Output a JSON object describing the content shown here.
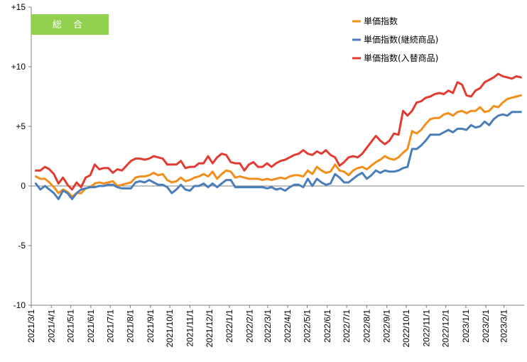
{
  "badge": {
    "label": "総 合",
    "color": "#92d050"
  },
  "chart_data": {
    "type": "line",
    "title": "",
    "xlabel": "",
    "ylabel": "",
    "ylim": [
      -10,
      15
    ],
    "y_ticks": [
      15,
      10,
      5,
      0,
      -5,
      -10
    ],
    "y_tick_labels": [
      "+15",
      "+10",
      "+5",
      "0",
      "-5",
      "-10"
    ],
    "x_tick_labels": [
      "2021/3/1",
      "2021/4/1",
      "2021/5/1",
      "2021/6/1",
      "2021/7/1",
      "2021/8/1",
      "2021/9/1",
      "2021/10/1",
      "2021/11/1",
      "2021/12/1",
      "2022/1/1",
      "2022/2/1",
      "2022/3/1",
      "2022/4/1",
      "2022/5/1",
      "2022/6/1",
      "2022/7/1",
      "2022/8/1",
      "2022/9/1",
      "2022/10/1",
      "2022/11/1",
      "2022/12/1",
      "2023/1/1",
      "2023/2/1",
      "2023/3/1"
    ],
    "legend_position": "top-right",
    "grid": false,
    "series": [
      {
        "name": "単価指数",
        "color": "#f28e1c",
        "x": [
          "2021/3/8",
          "2021/3/15",
          "2021/3/22",
          "2021/3/29",
          "2021/4/5",
          "2021/4/12",
          "2021/4/19",
          "2021/4/26",
          "2021/5/3",
          "2021/5/10",
          "2021/5/17",
          "2021/5/24",
          "2021/5/31",
          "2021/6/7",
          "2021/6/14",
          "2021/6/21",
          "2021/6/28",
          "2021/7/5",
          "2021/7/12",
          "2021/7/19",
          "2021/7/26",
          "2021/8/2",
          "2021/8/9",
          "2021/8/16",
          "2021/8/23",
          "2021/8/30",
          "2021/9/6",
          "2021/9/13",
          "2021/9/20",
          "2021/9/27",
          "2021/10/4",
          "2021/10/11",
          "2021/10/18",
          "2021/10/25",
          "2021/11/1",
          "2021/11/8",
          "2021/11/15",
          "2021/11/22",
          "2021/11/29",
          "2021/12/6",
          "2021/12/13",
          "2021/12/20",
          "2021/12/27",
          "2022/1/3",
          "2022/1/10",
          "2022/1/17",
          "2022/1/24",
          "2022/1/31",
          "2022/2/7",
          "2022/2/14",
          "2022/2/21",
          "2022/2/28",
          "2022/3/7",
          "2022/3/14",
          "2022/3/21",
          "2022/3/28",
          "2022/4/4",
          "2022/4/11",
          "2022/4/18",
          "2022/4/25",
          "2022/5/2",
          "2022/5/9",
          "2022/5/16",
          "2022/5/23",
          "2022/5/30",
          "2022/6/6",
          "2022/6/13",
          "2022/6/20",
          "2022/6/27",
          "2022/7/4",
          "2022/7/11",
          "2022/7/18",
          "2022/7/25",
          "2022/8/1",
          "2022/8/8",
          "2022/8/15",
          "2022/8/22",
          "2022/8/29",
          "2022/9/5",
          "2022/9/12",
          "2022/9/19",
          "2022/9/26",
          "2022/10/3",
          "2022/10/10",
          "2022/10/17",
          "2022/10/24",
          "2022/10/31",
          "2022/11/7",
          "2022/11/14",
          "2022/11/21",
          "2022/11/28",
          "2022/12/5",
          "2022/12/12",
          "2022/12/19",
          "2022/12/26",
          "2023/1/2",
          "2023/1/9",
          "2023/1/16",
          "2023/1/23",
          "2023/1/30",
          "2023/2/6",
          "2023/2/13",
          "2023/2/20",
          "2023/2/27",
          "2023/3/6",
          "2023/3/13",
          "2023/3/20",
          "2023/3/27"
        ],
        "values": [
          0.8,
          0.6,
          0.6,
          0.3,
          -0.1,
          -0.6,
          -0.3,
          -0.5,
          -0.9,
          -0.6,
          -0.6,
          -0.2,
          -0.1,
          0.2,
          0.3,
          0.2,
          0.3,
          0.4,
          0.0,
          0.1,
          0.2,
          0.3,
          0.7,
          0.8,
          0.8,
          0.9,
          1.1,
          0.9,
          1.0,
          0.5,
          0.3,
          0.4,
          0.7,
          0.4,
          0.5,
          0.7,
          0.8,
          1.0,
          0.8,
          1.2,
          0.6,
          1.0,
          1.3,
          1.2,
          0.7,
          0.8,
          0.7,
          0.6,
          0.6,
          0.6,
          0.5,
          0.6,
          0.5,
          0.6,
          0.7,
          0.6,
          0.8,
          0.9,
          0.9,
          0.8,
          1.3,
          1.0,
          1.6,
          1.3,
          1.1,
          1.2,
          1.8,
          1.3,
          1.2,
          0.9,
          1.3,
          1.5,
          1.6,
          1.4,
          1.7,
          2.0,
          2.2,
          2.5,
          2.3,
          2.2,
          2.4,
          2.8,
          3.1,
          4.6,
          4.4,
          4.7,
          5.2,
          5.6,
          5.7,
          5.7,
          6.0,
          6.1,
          5.9,
          6.2,
          6.3,
          6.1,
          6.3,
          6.3,
          6.6,
          6.2,
          6.3,
          6.7,
          6.6,
          7.0,
          7.3,
          7.4,
          7.5,
          7.6
        ]
      },
      {
        "name": "単価指数(継続商品)",
        "color": "#4a7ebb",
        "x": [
          "2021/3/8",
          "2021/3/15",
          "2021/3/22",
          "2021/3/29",
          "2021/4/5",
          "2021/4/12",
          "2021/4/19",
          "2021/4/26",
          "2021/5/3",
          "2021/5/10",
          "2021/5/17",
          "2021/5/24",
          "2021/5/31",
          "2021/6/7",
          "2021/6/14",
          "2021/6/21",
          "2021/6/28",
          "2021/7/5",
          "2021/7/12",
          "2021/7/19",
          "2021/7/26",
          "2021/8/2",
          "2021/8/9",
          "2021/8/16",
          "2021/8/23",
          "2021/8/30",
          "2021/9/6",
          "2021/9/13",
          "2021/9/20",
          "2021/9/27",
          "2021/10/4",
          "2021/10/11",
          "2021/10/18",
          "2021/10/25",
          "2021/11/1",
          "2021/11/8",
          "2021/11/15",
          "2021/11/22",
          "2021/11/29",
          "2021/12/6",
          "2021/12/13",
          "2021/12/20",
          "2021/12/27",
          "2022/1/3",
          "2022/1/10",
          "2022/1/17",
          "2022/1/24",
          "2022/1/31",
          "2022/2/7",
          "2022/2/14",
          "2022/2/21",
          "2022/2/28",
          "2022/3/7",
          "2022/3/14",
          "2022/3/21",
          "2022/3/28",
          "2022/4/4",
          "2022/4/11",
          "2022/4/18",
          "2022/4/25",
          "2022/5/2",
          "2022/5/9",
          "2022/5/16",
          "2022/5/23",
          "2022/5/30",
          "2022/6/6",
          "2022/6/13",
          "2022/6/20",
          "2022/6/27",
          "2022/7/4",
          "2022/7/11",
          "2022/7/18",
          "2022/7/25",
          "2022/8/1",
          "2022/8/8",
          "2022/8/15",
          "2022/8/22",
          "2022/8/29",
          "2022/9/5",
          "2022/9/12",
          "2022/9/19",
          "2022/9/26",
          "2022/10/3",
          "2022/10/10",
          "2022/10/17",
          "2022/10/24",
          "2022/10/31",
          "2022/11/7",
          "2022/11/14",
          "2022/11/21",
          "2022/11/28",
          "2022/12/5",
          "2022/12/12",
          "2022/12/19",
          "2022/12/26",
          "2023/1/2",
          "2023/1/9",
          "2023/1/16",
          "2023/1/23",
          "2023/1/30",
          "2023/2/6",
          "2023/2/13",
          "2023/2/20",
          "2023/2/27",
          "2023/3/6",
          "2023/3/13",
          "2023/3/20",
          "2023/3/27"
        ],
        "values": [
          0.2,
          -0.3,
          0.0,
          -0.3,
          -0.6,
          -1.1,
          -0.4,
          -0.6,
          -1.1,
          -0.6,
          -0.3,
          -0.2,
          -0.1,
          -0.1,
          0.0,
          0.0,
          0.1,
          0.1,
          -0.1,
          -0.2,
          -0.2,
          -0.2,
          0.3,
          0.4,
          0.3,
          0.5,
          0.3,
          0.1,
          0.1,
          -0.1,
          -0.6,
          -0.3,
          0.1,
          -0.3,
          -0.4,
          0.0,
          0.0,
          0.2,
          -0.1,
          0.2,
          -0.1,
          0.2,
          0.5,
          0.5,
          -0.1,
          -0.1,
          -0.1,
          -0.1,
          -0.1,
          -0.1,
          -0.1,
          -0.2,
          -0.1,
          -0.3,
          -0.2,
          -0.4,
          -0.1,
          0.1,
          0.1,
          -0.1,
          0.6,
          0.0,
          0.6,
          0.3,
          0.1,
          0.2,
          1.0,
          0.7,
          0.3,
          0.3,
          0.6,
          0.9,
          1.1,
          0.6,
          0.9,
          1.3,
          1.1,
          1.3,
          1.2,
          1.2,
          1.3,
          1.5,
          1.6,
          3.1,
          3.1,
          3.4,
          3.8,
          4.3,
          4.3,
          4.3,
          4.5,
          4.7,
          4.5,
          4.8,
          4.8,
          4.7,
          5.1,
          4.9,
          5.0,
          5.4,
          5.1,
          5.6,
          5.9,
          6.0,
          5.9,
          6.2,
          6.2,
          6.2
        ]
      },
      {
        "name": "単価指数(入替商品)",
        "color": "#e03c31",
        "x": [
          "2021/3/8",
          "2021/3/15",
          "2021/3/22",
          "2021/3/29",
          "2021/4/5",
          "2021/4/12",
          "2021/4/19",
          "2021/4/26",
          "2021/5/3",
          "2021/5/10",
          "2021/5/17",
          "2021/5/24",
          "2021/5/31",
          "2021/6/7",
          "2021/6/14",
          "2021/6/21",
          "2021/6/28",
          "2021/7/5",
          "2021/7/12",
          "2021/7/19",
          "2021/7/26",
          "2021/8/2",
          "2021/8/9",
          "2021/8/16",
          "2021/8/23",
          "2021/8/30",
          "2021/9/6",
          "2021/9/13",
          "2021/9/20",
          "2021/9/27",
          "2021/10/4",
          "2021/10/11",
          "2021/10/18",
          "2021/10/25",
          "2021/11/1",
          "2021/11/8",
          "2021/11/15",
          "2021/11/22",
          "2021/11/29",
          "2021/12/6",
          "2021/12/13",
          "2021/12/20",
          "2021/12/27",
          "2022/1/3",
          "2022/1/10",
          "2022/1/17",
          "2022/1/24",
          "2022/1/31",
          "2022/2/7",
          "2022/2/14",
          "2022/2/21",
          "2022/2/28",
          "2022/3/7",
          "2022/3/14",
          "2022/3/21",
          "2022/3/28",
          "2022/4/4",
          "2022/4/11",
          "2022/4/18",
          "2022/4/25",
          "2022/5/2",
          "2022/5/9",
          "2022/5/16",
          "2022/5/23",
          "2022/5/30",
          "2022/6/6",
          "2022/6/13",
          "2022/6/20",
          "2022/6/27",
          "2022/7/4",
          "2022/7/11",
          "2022/7/18",
          "2022/7/25",
          "2022/8/1",
          "2022/8/8",
          "2022/8/15",
          "2022/8/22",
          "2022/8/29",
          "2022/9/5",
          "2022/9/12",
          "2022/9/19",
          "2022/9/26",
          "2022/10/3",
          "2022/10/10",
          "2022/10/17",
          "2022/10/24",
          "2022/10/31",
          "2022/11/7",
          "2022/11/14",
          "2022/11/21",
          "2022/11/28",
          "2022/12/5",
          "2022/12/12",
          "2022/12/19",
          "2022/12/26",
          "2023/1/2",
          "2023/1/9",
          "2023/1/16",
          "2023/1/23",
          "2023/1/30",
          "2023/2/6",
          "2023/2/13",
          "2023/2/20",
          "2023/2/27",
          "2023/3/6",
          "2023/3/13",
          "2023/3/20",
          "2023/3/27"
        ],
        "values": [
          1.3,
          1.3,
          1.6,
          1.4,
          1.0,
          0.2,
          0.7,
          0.1,
          -0.3,
          0.3,
          -0.1,
          0.7,
          0.9,
          1.8,
          1.4,
          1.5,
          1.5,
          1.1,
          1.4,
          1.3,
          1.7,
          2.1,
          2.3,
          2.3,
          2.2,
          2.3,
          2.5,
          2.4,
          2.3,
          1.8,
          1.8,
          1.8,
          2.1,
          1.5,
          1.6,
          1.6,
          1.9,
          1.9,
          2.5,
          1.9,
          2.4,
          2.7,
          2.6,
          2.0,
          1.9,
          1.9,
          1.3,
          1.8,
          2.0,
          1.6,
          1.6,
          1.9,
          1.6,
          1.9,
          2.1,
          2.2,
          2.4,
          2.6,
          2.7,
          3.0,
          2.7,
          2.6,
          2.9,
          2.7,
          3.0,
          2.6,
          2.4,
          1.7,
          2.0,
          2.4,
          2.5,
          2.4,
          2.7,
          3.2,
          3.7,
          4.2,
          3.8,
          3.5,
          3.8,
          4.4,
          4.3,
          6.3,
          5.9,
          6.3,
          7.0,
          7.1,
          7.4,
          7.5,
          7.7,
          7.8,
          7.7,
          8.0,
          7.8,
          8.7,
          8.5,
          7.6,
          7.5,
          8.0,
          8.2,
          8.7,
          8.9,
          9.1,
          9.4,
          9.2,
          9.1,
          9.0,
          9.2,
          9.1
        ]
      }
    ]
  }
}
